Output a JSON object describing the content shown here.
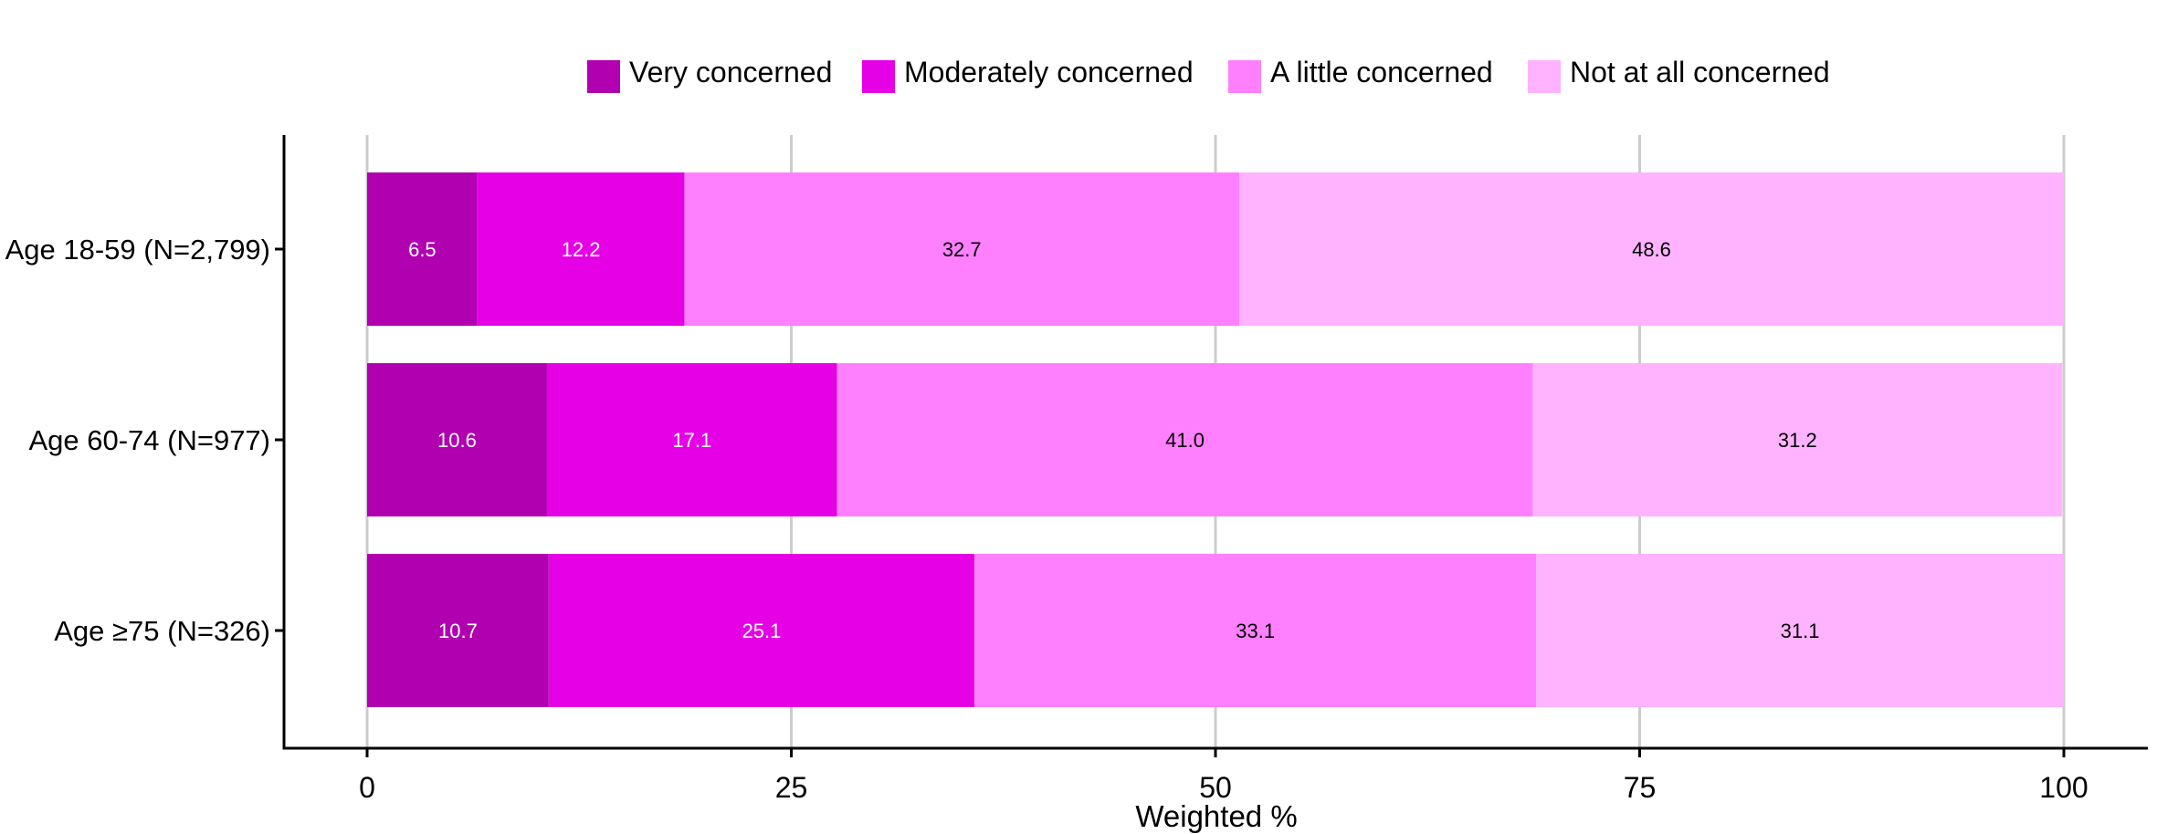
{
  "chart_data": {
    "type": "bar",
    "orientation": "horizontal",
    "stacked": true,
    "title": "",
    "xlabel": "Weighted %",
    "ylabel": "",
    "xlim": [
      0,
      100
    ],
    "xticks": [
      0,
      25,
      50,
      75,
      100
    ],
    "grid": true,
    "legend_position": "top",
    "categories": [
      "Age 18-59 (N=2,799)",
      "Age 60-74 (N=977)",
      "Age ≥75 (N=326)"
    ],
    "series": [
      {
        "name": "Very concerned",
        "color": "#b000b0",
        "label_color": "#ffffff",
        "values": [
          6.5,
          10.6,
          10.7
        ],
        "labels": [
          "6.5",
          "10.6",
          "10.7"
        ]
      },
      {
        "name": "Moderately concerned",
        "color": "#e600e6",
        "label_color": "#ffffff",
        "values": [
          12.2,
          17.1,
          25.1
        ],
        "labels": [
          "12.2",
          "17.1",
          "25.1"
        ]
      },
      {
        "name": "A little concerned",
        "color": "#ff80ff",
        "label_color": "#000000",
        "values": [
          32.7,
          41.0,
          33.1
        ],
        "labels": [
          "32.7",
          "41.0",
          "33.1"
        ]
      },
      {
        "name": "Not at all concerned",
        "color": "#ffb3ff",
        "label_color": "#000000",
        "values": [
          48.6,
          31.2,
          31.1
        ],
        "labels": [
          "48.6",
          "31.2",
          "31.1"
        ]
      }
    ]
  }
}
